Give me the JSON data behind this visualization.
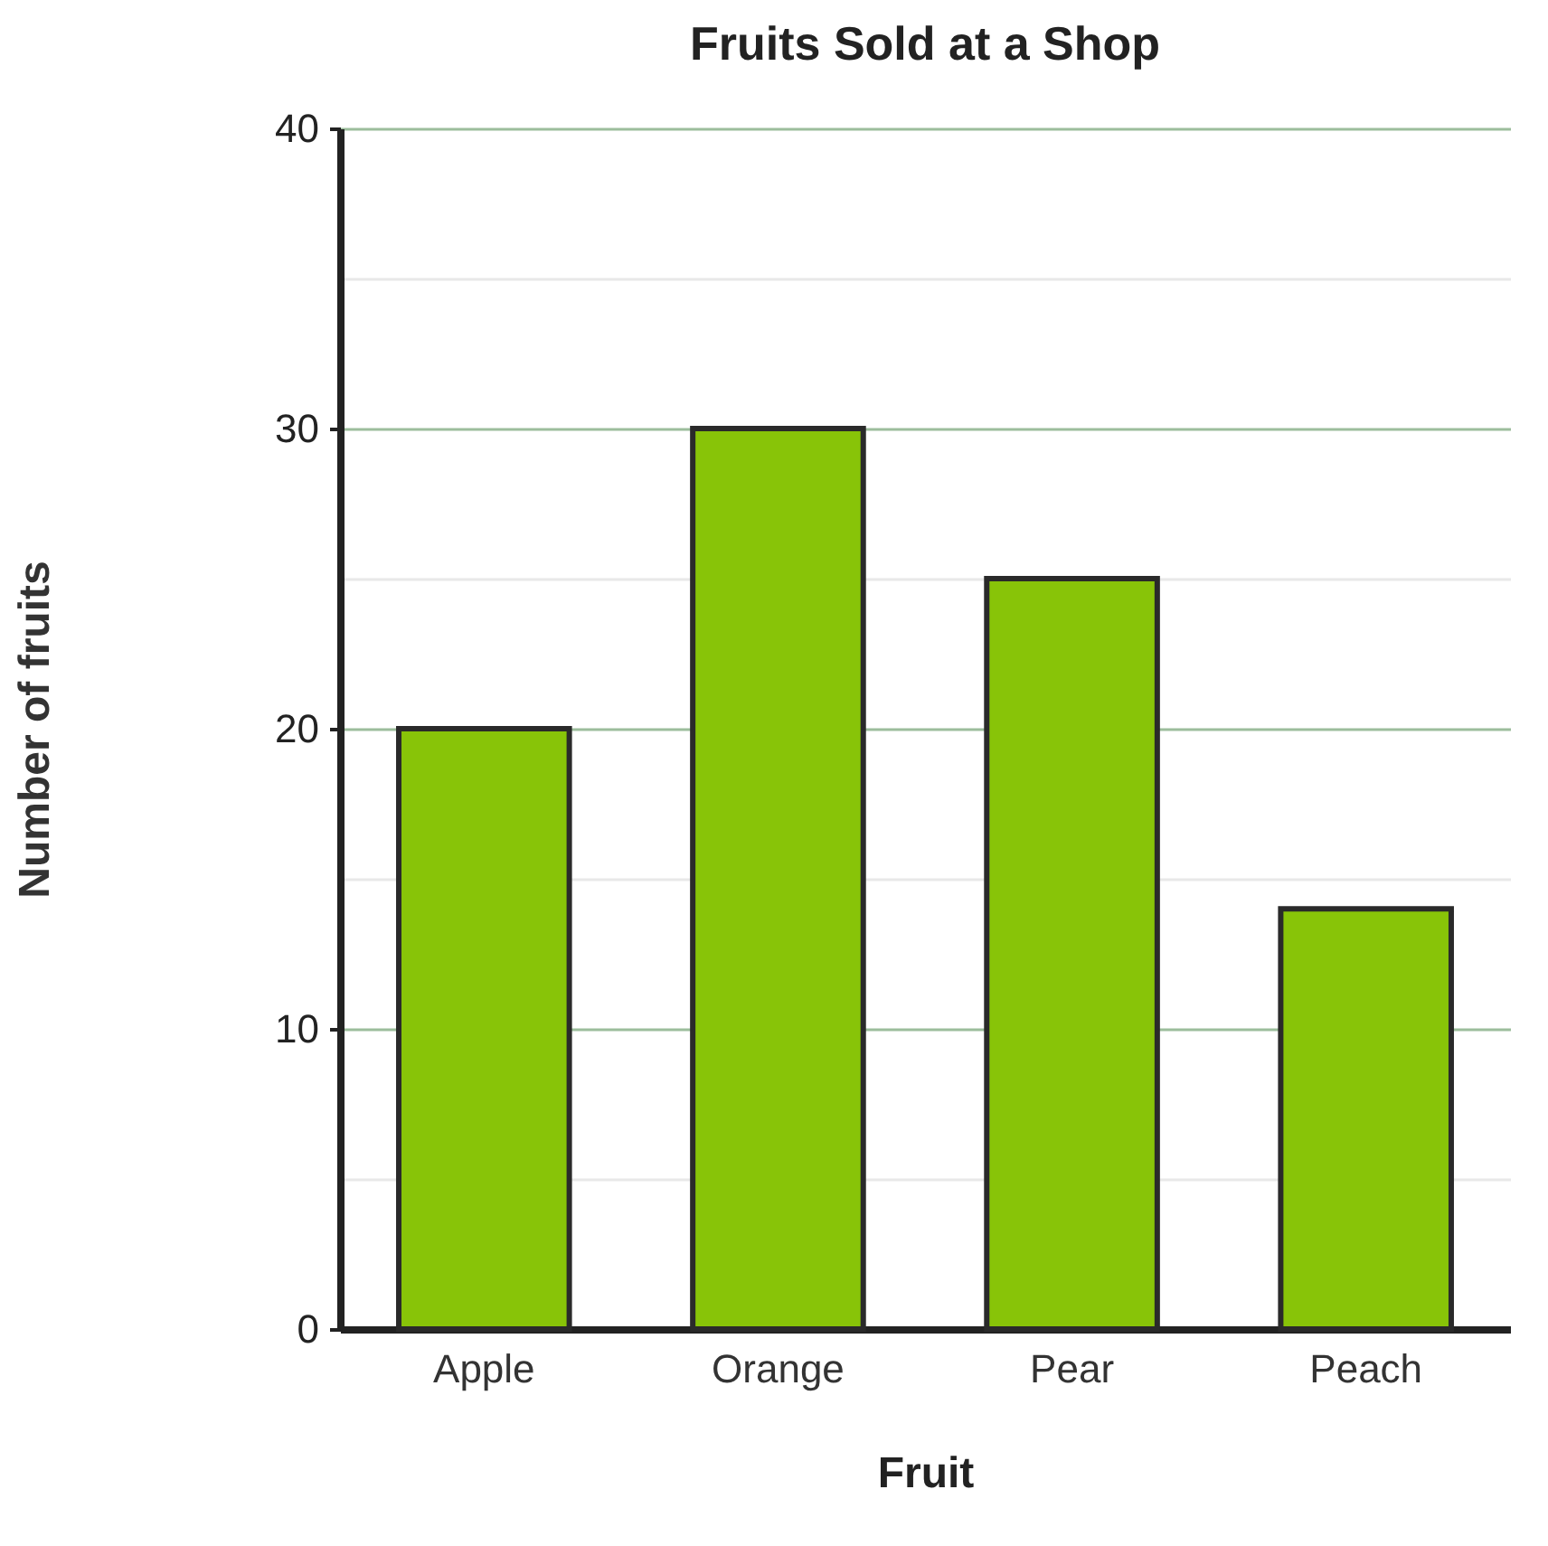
{
  "chart_data": {
    "type": "bar",
    "title": "Fruits Sold at a Shop",
    "xlabel": "Fruit",
    "ylabel": "Number of fruits",
    "categories": [
      "Apple",
      "Orange",
      "Pear",
      "Peach"
    ],
    "values": [
      20,
      30,
      25,
      14
    ],
    "color": "#88c408",
    "ylim": [
      0,
      40
    ],
    "yticks": [
      0,
      {
        "value": 5,
        "label": null
      },
      10,
      {
        "value": 15,
        "label": null
      },
      20,
      {
        "value": 25,
        "label": null
      },
      30,
      {
        "value": 35,
        "label": null
      },
      40
    ],
    "grid": "y"
  }
}
